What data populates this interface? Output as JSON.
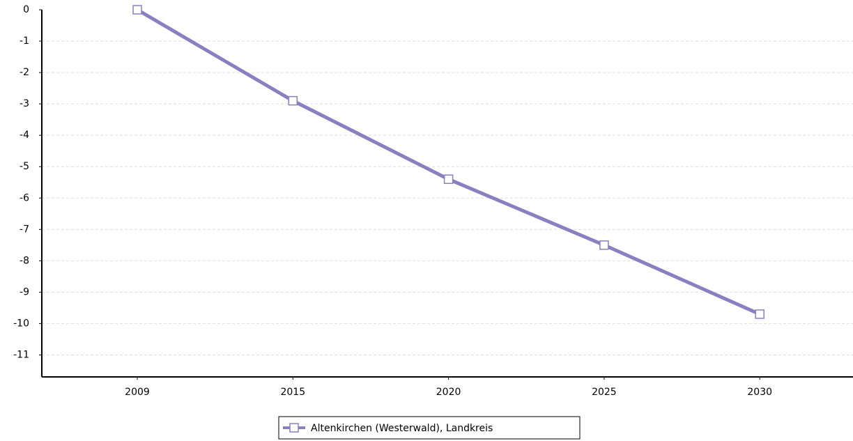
{
  "chart_data": {
    "type": "line",
    "categories": [
      "2009",
      "2015",
      "2020",
      "2025",
      "2030"
    ],
    "series": [
      {
        "name": "Altenkirchen (Westerwald), Landkreis",
        "color": "#8a7fc0",
        "values": [
          0,
          -2.9,
          -5.4,
          -7.5,
          -9.7
        ]
      }
    ],
    "ylim": [
      -11.7,
      0
    ],
    "yticks": [
      0,
      -1,
      -2,
      -3,
      -4,
      -5,
      -6,
      -7,
      -8,
      -9,
      -10,
      -11
    ],
    "grid": true
  }
}
